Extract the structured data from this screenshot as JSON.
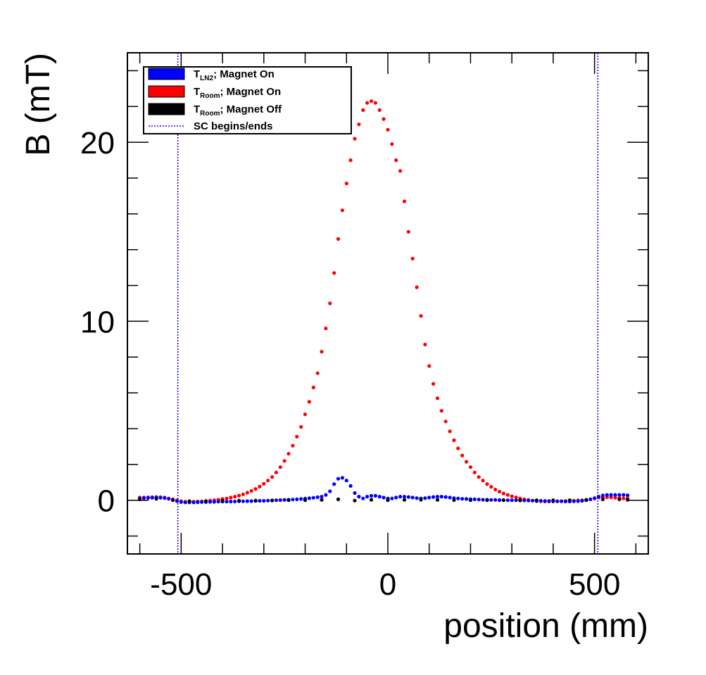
{
  "chart_data": {
    "type": "scatter",
    "xlabel": "position (mm)",
    "ylabel": "B (mT)",
    "xlim": [
      -630,
      630
    ],
    "ylim": [
      -3,
      25
    ],
    "x_ticks": [
      -500,
      0,
      500
    ],
    "y_ticks": [
      0,
      10,
      20
    ],
    "grid": false,
    "legend_position": "top-left",
    "legend": [
      {
        "label_base": "T",
        "label_sub": "LN2",
        "label_rest": "; Magnet On",
        "color": "#0000ff",
        "marker": "box"
      },
      {
        "label_base": "T",
        "label_sub": "Room",
        "label_rest": "; Magnet On",
        "color": "#ff0000",
        "marker": "box"
      },
      {
        "label_base": "T",
        "label_sub": "Room",
        "label_rest": "; Magnet Off",
        "color": "#000000",
        "marker": "box"
      },
      {
        "label_base": "SC begins/ends",
        "label_sub": "",
        "label_rest": "",
        "color": "#0000ff",
        "marker": "dotted-line"
      }
    ],
    "vlines": [
      -508,
      508
    ],
    "series": [
      {
        "name": "T_Room; Magnet On",
        "color": "#ff0000",
        "x": [
          -600,
          -590,
          -580,
          -570,
          -560,
          -550,
          -540,
          -530,
          -520,
          -510,
          -500,
          -490,
          -480,
          -470,
          -460,
          -450,
          -440,
          -430,
          -420,
          -410,
          -400,
          -390,
          -380,
          -370,
          -360,
          -350,
          -340,
          -330,
          -320,
          -310,
          -300,
          -290,
          -280,
          -270,
          -260,
          -250,
          -240,
          -230,
          -220,
          -210,
          -200,
          -190,
          -180,
          -170,
          -160,
          -150,
          -140,
          -130,
          -120,
          -110,
          -100,
          -90,
          -80,
          -70,
          -60,
          -50,
          -40,
          -30,
          -20,
          -10,
          0,
          10,
          20,
          30,
          40,
          50,
          60,
          70,
          80,
          90,
          100,
          110,
          120,
          130,
          140,
          150,
          160,
          170,
          180,
          190,
          200,
          210,
          220,
          230,
          240,
          250,
          260,
          270,
          280,
          290,
          300,
          310,
          320,
          330,
          340,
          350,
          360,
          370,
          380,
          390,
          400,
          410,
          420,
          430,
          440,
          450,
          460,
          470,
          480,
          490,
          500,
          510,
          520,
          530,
          540,
          550,
          560,
          570,
          580
        ],
        "y": [
          0.15,
          0.15,
          0.16,
          0.17,
          0.18,
          0.17,
          0.15,
          0.1,
          0.05,
          0.0,
          -0.05,
          -0.08,
          -0.08,
          -0.08,
          -0.07,
          -0.06,
          -0.04,
          -0.02,
          0.0,
          0.03,
          0.07,
          0.1,
          0.15,
          0.2,
          0.26,
          0.33,
          0.42,
          0.52,
          0.63,
          0.76,
          0.92,
          1.1,
          1.3,
          1.55,
          1.85,
          2.2,
          2.6,
          3.05,
          3.55,
          4.1,
          4.8,
          5.5,
          6.3,
          7.1,
          8.3,
          9.6,
          11.0,
          12.7,
          14.6,
          16.2,
          17.7,
          19.0,
          20.2,
          21.0,
          21.8,
          22.2,
          22.3,
          22.2,
          21.8,
          21.3,
          20.7,
          19.9,
          19.0,
          18.4,
          16.7,
          15.0,
          13.5,
          11.9,
          10.3,
          8.7,
          7.5,
          6.5,
          5.7,
          5.0,
          4.4,
          3.85,
          3.35,
          2.9,
          2.5,
          2.15,
          1.85,
          1.55,
          1.3,
          1.1,
          0.9,
          0.75,
          0.6,
          0.48,
          0.38,
          0.3,
          0.22,
          0.16,
          0.1,
          0.05,
          0.02,
          -0.02,
          -0.05,
          -0.06,
          -0.07,
          -0.07,
          -0.07,
          -0.06,
          -0.05,
          -0.04,
          -0.03,
          -0.02,
          -0.01,
          0.0,
          0.02,
          0.05,
          0.1,
          0.15,
          0.17,
          0.17,
          0.16,
          0.14,
          0.12,
          0.1,
          0.1
        ]
      },
      {
        "name": "T_LN2; Magnet On",
        "color": "#0000ff",
        "x": [
          -600,
          -590,
          -580,
          -570,
          -560,
          -550,
          -540,
          -530,
          -520,
          -510,
          -500,
          -490,
          -480,
          -470,
          -460,
          -450,
          -440,
          -430,
          -420,
          -410,
          -400,
          -390,
          -380,
          -370,
          -360,
          -350,
          -340,
          -330,
          -320,
          -310,
          -300,
          -290,
          -280,
          -270,
          -260,
          -250,
          -240,
          -230,
          -220,
          -210,
          -200,
          -190,
          -180,
          -170,
          -160,
          -150,
          -140,
          -130,
          -120,
          -110,
          -100,
          -90,
          -80,
          -70,
          -60,
          -50,
          -40,
          -30,
          -20,
          -10,
          0,
          10,
          20,
          30,
          40,
          50,
          60,
          70,
          80,
          90,
          100,
          110,
          120,
          130,
          140,
          150,
          160,
          170,
          180,
          190,
          200,
          210,
          220,
          230,
          240,
          250,
          260,
          270,
          280,
          290,
          300,
          310,
          320,
          330,
          340,
          350,
          360,
          370,
          380,
          390,
          400,
          410,
          420,
          430,
          440,
          450,
          460,
          470,
          480,
          490,
          500,
          510,
          520,
          530,
          540,
          550,
          560,
          570,
          580
        ],
        "y": [
          0.1,
          0.12,
          0.13,
          0.14,
          0.15,
          0.14,
          0.12,
          0.08,
          0.02,
          -0.05,
          -0.1,
          -0.12,
          -0.12,
          -0.12,
          -0.11,
          -0.1,
          -0.1,
          -0.09,
          -0.09,
          -0.08,
          -0.08,
          -0.08,
          -0.07,
          -0.07,
          -0.06,
          -0.06,
          -0.05,
          -0.05,
          -0.04,
          -0.03,
          -0.03,
          -0.02,
          -0.01,
          0.0,
          0.01,
          0.02,
          0.03,
          0.04,
          0.05,
          0.07,
          0.09,
          0.11,
          0.14,
          0.17,
          0.2,
          0.3,
          0.5,
          0.9,
          1.2,
          1.25,
          1.1,
          0.8,
          0.4,
          0.2,
          0.1,
          0.2,
          0.25,
          0.25,
          0.2,
          0.15,
          0.1,
          0.1,
          0.15,
          0.2,
          0.2,
          0.18,
          0.15,
          0.12,
          0.1,
          0.12,
          0.15,
          0.18,
          0.2,
          0.2,
          0.18,
          0.15,
          0.12,
          0.1,
          0.08,
          0.07,
          0.06,
          0.05,
          0.04,
          0.03,
          0.03,
          0.02,
          0.02,
          0.01,
          0.01,
          0.0,
          0.0,
          0.0,
          -0.01,
          -0.01,
          -0.02,
          -0.02,
          -0.03,
          -0.03,
          -0.04,
          -0.04,
          -0.05,
          -0.06,
          -0.06,
          -0.07,
          -0.07,
          -0.06,
          -0.05,
          -0.03,
          0.0,
          0.05,
          0.12,
          0.2,
          0.27,
          0.3,
          0.3,
          0.3,
          0.3,
          0.3,
          0.28
        ]
      },
      {
        "name": "T_Room; Magnet Off",
        "color": "#000000",
        "x": [
          -600,
          -560,
          -520,
          -480,
          -440,
          -400,
          -360,
          -320,
          -280,
          -240,
          -200,
          -160,
          -120,
          -80,
          -40,
          0,
          40,
          80,
          120,
          160,
          200,
          240,
          280,
          320,
          360,
          400,
          440,
          480,
          520,
          560,
          580
        ],
        "y": [
          0.05,
          0.08,
          0.0,
          -0.05,
          -0.05,
          -0.03,
          -0.02,
          -0.02,
          -0.01,
          0.0,
          0.0,
          0.02,
          0.05,
          -0.02,
          0.03,
          0.0,
          0.02,
          0.03,
          0.02,
          0.01,
          0.0,
          0.0,
          0.0,
          0.0,
          0.0,
          0.0,
          0.0,
          0.02,
          0.05,
          0.05,
          0.03
        ]
      }
    ]
  }
}
